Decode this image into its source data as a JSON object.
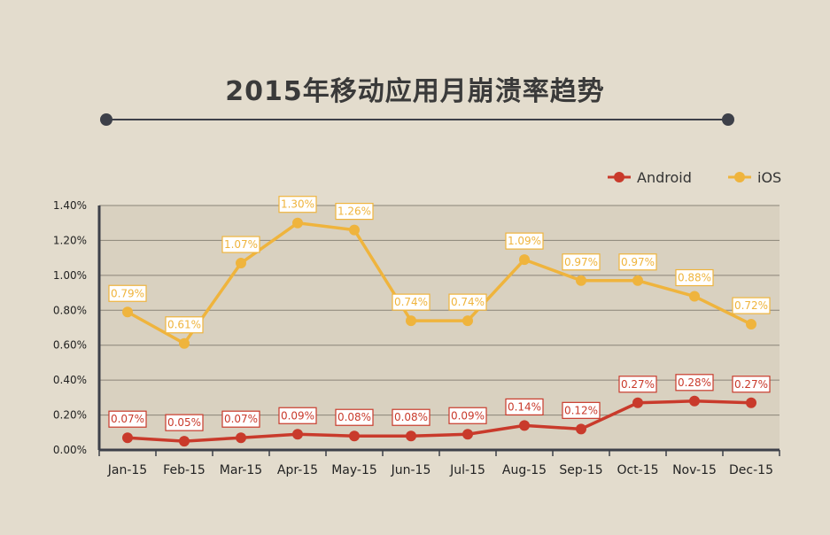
{
  "title": "2015年移动应用月崩溃率趋势",
  "colors": {
    "background": "#e3dccd",
    "plot_area": "#d9d1c0",
    "android": "#c93a2b",
    "ios": "#efb43d",
    "axis": "#3d4049",
    "grid": "#8a8478"
  },
  "chart_data": {
    "type": "line",
    "title": "2015年移动应用月崩溃率趋势",
    "categories": [
      "Jan-15",
      "Feb-15",
      "Mar-15",
      "Apr-15",
      "May-15",
      "Jun-15",
      "Jul-15",
      "Aug-15",
      "Sep-15",
      "Oct-15",
      "Nov-15",
      "Dec-15"
    ],
    "y_ticks": [
      "0.00%",
      "0.20%",
      "0.40%",
      "0.60%",
      "0.80%",
      "1.00%",
      "1.20%",
      "1.40%"
    ],
    "ylim": [
      0,
      1.4
    ],
    "y_unit": "%",
    "grid": true,
    "legend_position": "top-right",
    "series": [
      {
        "name": "Android",
        "color": "#c93a2b",
        "values": [
          0.07,
          0.05,
          0.07,
          0.09,
          0.08,
          0.08,
          0.09,
          0.14,
          0.12,
          0.27,
          0.28,
          0.27
        ],
        "labels": [
          "0.07%",
          "0.05%",
          "0.07%",
          "0.09%",
          "0.08%",
          "0.08%",
          "0.09%",
          "0.14%",
          "0.12%",
          "0.27%",
          "0.28%",
          "0.27%"
        ]
      },
      {
        "name": "iOS",
        "color": "#efb43d",
        "values": [
          0.79,
          0.61,
          1.07,
          1.3,
          1.26,
          0.74,
          0.74,
          1.09,
          0.97,
          0.97,
          0.88,
          0.72
        ],
        "labels": [
          "0.79%",
          "0.61%",
          "1.07%",
          "1.30%",
          "1.26%",
          "0.74%",
          "0.74%",
          "1.09%",
          "0.97%",
          "0.97%",
          "0.88%",
          "0.72%"
        ]
      }
    ]
  }
}
